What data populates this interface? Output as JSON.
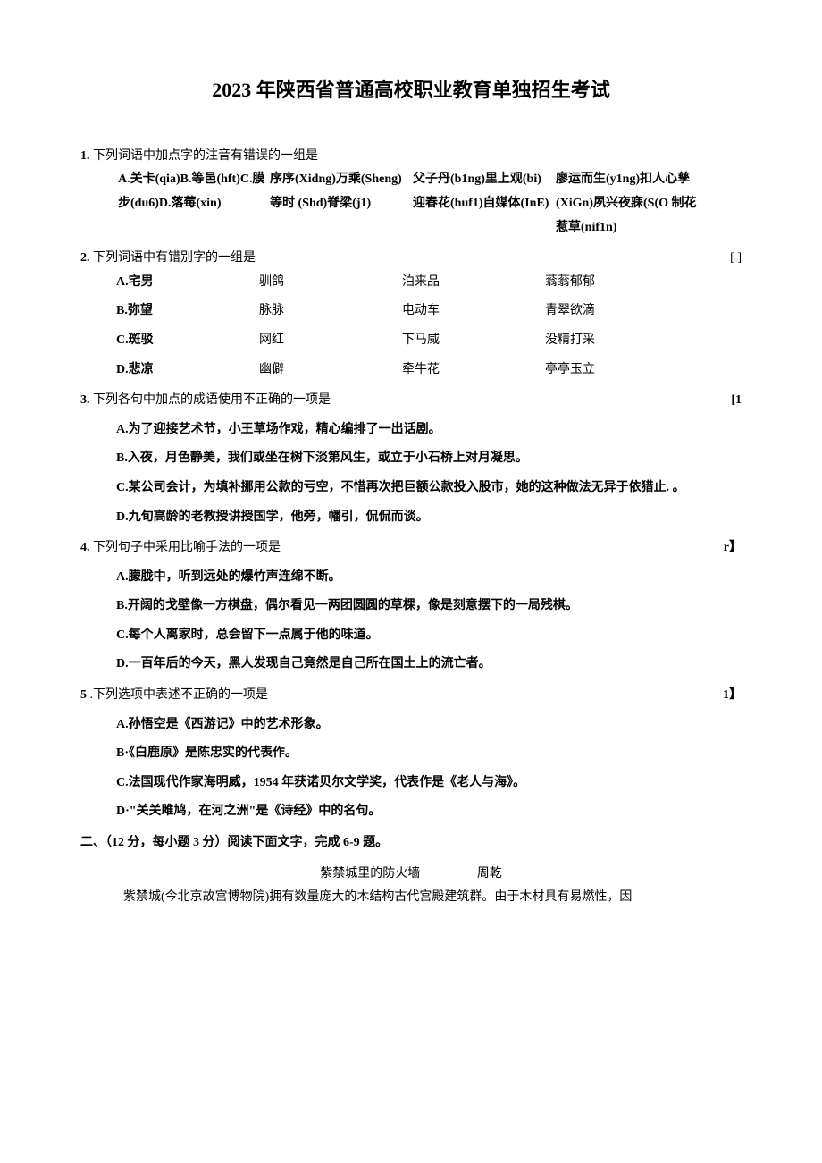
{
  "title": "2023 年陕西省普通高校职业教育单独招生考试",
  "q1": {
    "num": "1.",
    "stem": "下列词语中加点字的注音有错误的一组是",
    "col1": "A.关卡(qia)B.等邑(hft)C.膜步(du6)D.落莓(xin)",
    "col2": "序序(Xidng)万乘(Sheng)等时 (Shd)脊梁(j1)",
    "col3": "父子丹(b1ng)里上观(bi)迎春花(huf1)自媒体(InE)",
    "col4": "廖运而生(y1ng)扣人心孳(XiGn)夙兴夜寐(S(O 制花惹草(nif1n)"
  },
  "q2": {
    "num": "2.",
    "stem": "下列词语中有错别字的一组是",
    "bracket": "[ ]",
    "rows": [
      [
        "A.宅男",
        "驯鸽",
        "泊来品",
        "蓊蓊郁郁"
      ],
      [
        "B.弥望",
        "脉脉",
        "电动车",
        "青翠欲滴"
      ],
      [
        "C.斑驳",
        "网红",
        "下马威",
        "没精打采"
      ],
      [
        "D.悲凉",
        "幽僻",
        "牵牛花",
        "亭亭玉立"
      ]
    ]
  },
  "q3": {
    "num": "3.",
    "stem": "下列各句中加点的成语使用不正确的一项是",
    "bracket": "[1",
    "opts": [
      "A.为了迎接艺术节，小王草场作戏，精心编排了一出话剧。",
      "B.入夜，月色静美，我们或坐在树下淡第风生，或立于小石桥上对月凝思。",
      "C.某公司会计，为填补挪用公款的亏空，不惜再次把巨额公款投入股市，她的这种做法无异于依猎止. 。",
      "D.九旬高龄的老教授讲授国学，他旁，幡引，侃侃而谈。"
    ]
  },
  "q4": {
    "num": "4.",
    "stem": "下列句子中采用比喻手法的一项是",
    "bracket": "r】",
    "opts": [
      "A.朦胧中，听到远处的爆竹声连绵不断。",
      "B.开阔的戈壁像一方棋盘，偶尔看见一两团圆圆的草棵，像是刻意摆下的一局残棋。",
      "C.每个人离家时，总会留下一点属于他的味道。",
      "D.一百年后的今天，黑人发现自己竟然是自己所在国土上的流亡者。"
    ]
  },
  "q5": {
    "num": "5",
    "stem": " .下列选项中表述不正确的一项是",
    "bracket": "1】",
    "opts": [
      "A.孙悟空是《西游记》中的艺术形象。",
      "B·《白鹿原》是陈忠实的代表作。",
      "C.法国现代作家海明威，1954 年获诺贝尔文学奖，代表作是《老人与海》。",
      "D·\"关关雎鸠，在河之洲\"是《诗经》中的名句。"
    ]
  },
  "section2": "二、（12 分，每小题 3 分）阅读下面文字，完成 6-9 题。",
  "article": {
    "title": "紫禁城里的防火墙",
    "author": "周乾",
    "body": "紫禁城(今北京故宫博物院)拥有数量庞大的木结构古代宫殿建筑群。由于木材具有易燃性，因"
  }
}
